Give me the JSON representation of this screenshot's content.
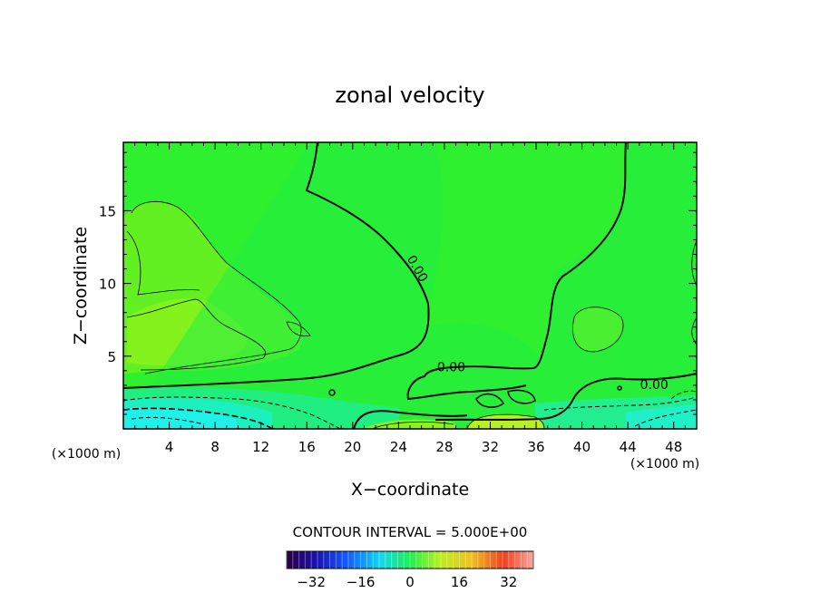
{
  "chart_data": {
    "type": "heatmap",
    "title": "zonal velocity",
    "xlabel": "X−coordinate",
    "ylabel": "Z−coordinate",
    "x_unit_left": "(×1000 m)",
    "x_unit_right": "(×1000 m)",
    "xlim": [
      0,
      50
    ],
    "ylim": [
      0,
      19.7
    ],
    "x_ticks": [
      4,
      8,
      12,
      16,
      20,
      24,
      28,
      32,
      36,
      40,
      44,
      48
    ],
    "y_ticks": [
      5,
      10,
      15
    ],
    "contour_labels": [
      {
        "text": "0.00",
        "x": 25.6,
        "y": 11.0,
        "angle": 60
      },
      {
        "text": "0.00",
        "x": 28.6,
        "y": 4.2,
        "angle": 0
      },
      {
        "text": "0.00",
        "x": 46.3,
        "y": 3.0,
        "angle": 0
      }
    ],
    "contour_interval_text": "CONTOUR INTERVAL = 5.000E+00",
    "colorbar": {
      "min": -40,
      "max": 40,
      "ticks": [
        -32,
        -16,
        0,
        16,
        32
      ]
    },
    "colors": {
      "background_field": "#2ef02e",
      "lower_left_cyan": "#1ff0e8",
      "yellow_green": "#8cf21c"
    }
  }
}
